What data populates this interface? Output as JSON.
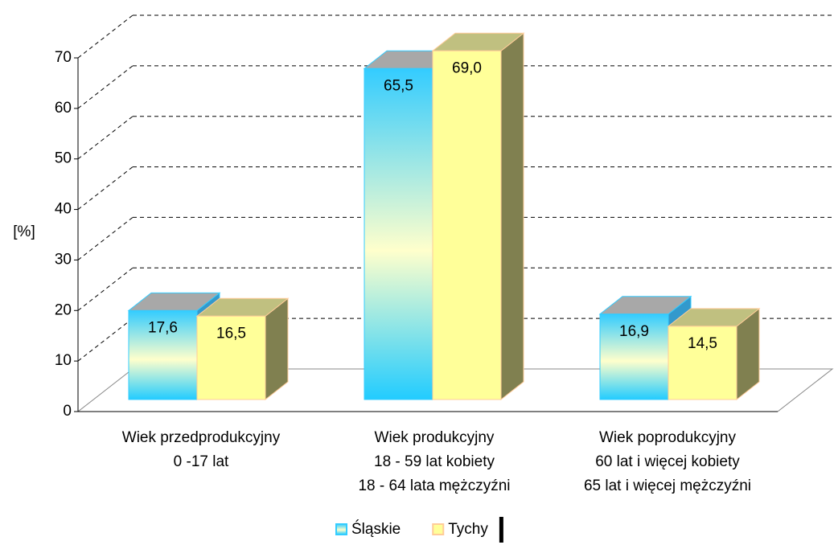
{
  "chart_data": {
    "type": "bar3d",
    "ylabel": "[%]",
    "categories": [
      [
        "Wiek przedprodukcyjny",
        "0 -17 lat"
      ],
      [
        "Wiek produkcyjny",
        "18 - 59 lat kobiety",
        "18 - 64 lata mężczyźni"
      ],
      [
        "Wiek poprodukcyjny",
        "60 lat i więcej kobiety",
        "65 lat i więcej mężczyźni"
      ]
    ],
    "series": [
      {
        "name": "Śląskie",
        "color": "#33ccff",
        "values": [
          17.6,
          65.5,
          16.9
        ],
        "value_labels": [
          "17,6",
          "65,5",
          "16,9"
        ]
      },
      {
        "name": "Tychy",
        "color": "#ffff99",
        "values": [
          16.5,
          69.0,
          14.5
        ],
        "value_labels": [
          "16,5",
          "69,0",
          "14,5"
        ]
      }
    ],
    "ylim": [
      0,
      70
    ],
    "yticks": [
      0,
      10,
      20,
      30,
      40,
      50,
      60,
      70
    ],
    "grid": true,
    "legend": "bottom"
  }
}
